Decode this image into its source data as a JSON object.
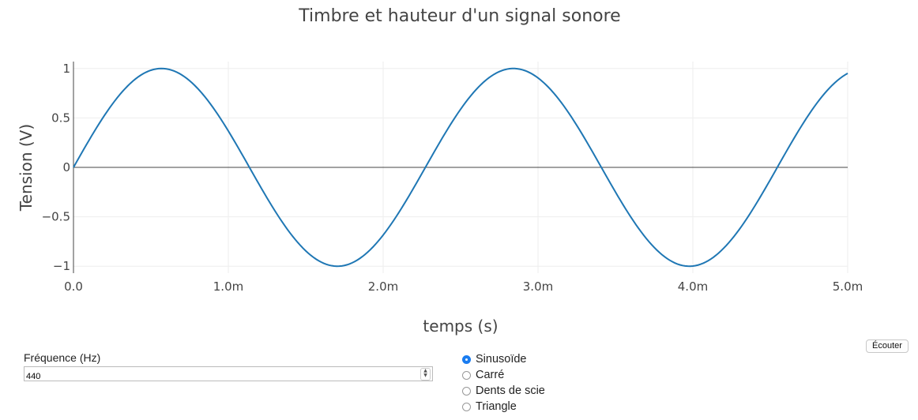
{
  "chart_data": {
    "type": "line",
    "title": "Timbre et hauteur d'un signal sonore",
    "xlabel": "temps (s)",
    "ylabel": "Tension (V)",
    "xlim": [
      0,
      0.005
    ],
    "ylim": [
      -1.07,
      1.07
    ],
    "x_tick_values": [
      0,
      0.001,
      0.002,
      0.003,
      0.004,
      0.005
    ],
    "x_tick_labels": [
      "0.0",
      "1.0m",
      "2.0m",
      "3.0m",
      "4.0m",
      "5.0m"
    ],
    "y_tick_values": [
      1,
      0.5,
      0,
      -0.5,
      -1
    ],
    "y_tick_labels": [
      "1",
      "0.5",
      "0",
      "−0.5",
      "−1"
    ],
    "grid": true,
    "series": [
      {
        "waveform": "sine",
        "frequency_hz": 440,
        "amplitude": 1,
        "sample_count": 300,
        "color": "#1f77b4"
      }
    ]
  },
  "controls": {
    "frequency_label": "Fréquence (Hz)",
    "frequency_value": "440",
    "listen_label": "Écouter",
    "waveforms": [
      {
        "label": "Sinusoïde",
        "checked": true
      },
      {
        "label": "Carré",
        "checked": false
      },
      {
        "label": "Dents de scie",
        "checked": false
      },
      {
        "label": "Triangle",
        "checked": false
      }
    ]
  }
}
